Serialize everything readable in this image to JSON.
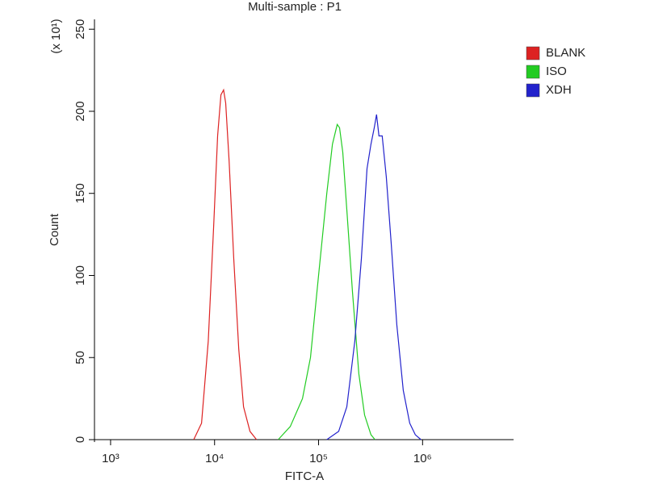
{
  "chart_data": {
    "type": "line",
    "title": "Multi-sample : P1",
    "x_label": "FITC-A",
    "y_label": "Count",
    "y_multiplier": "(x 10¹)",
    "xscale": "log",
    "xlim": [
      700,
      7500000
    ],
    "ylim": [
      0,
      256
    ],
    "xticks": [
      {
        "value": 1000,
        "label": "10³"
      },
      {
        "value": 10000,
        "label": "10⁴"
      },
      {
        "value": 100000,
        "label": "10⁵"
      },
      {
        "value": 1000000,
        "label": "10⁶"
      }
    ],
    "yticks": [
      0,
      50,
      100,
      150,
      200,
      250
    ],
    "legend": "right-top",
    "series": [
      {
        "name": "BLANK",
        "color": "#dd2222",
        "x": [
          6300,
          7500,
          8700,
          9800,
          10700,
          11500,
          12200,
          12800,
          13800,
          15300,
          17100,
          19000,
          21900,
          25300
        ],
        "values": [
          0,
          10,
          60,
          130,
          185,
          210,
          213,
          205,
          170,
          110,
          55,
          20,
          5,
          0
        ]
      },
      {
        "name": "ISO",
        "color": "#22cc22",
        "x": [
          40900,
          53500,
          70000,
          83600,
          100000,
          120000,
          136000,
          151000,
          159000,
          171000,
          187000,
          212000,
          244000,
          277000,
          319000,
          349000
        ],
        "values": [
          0,
          8,
          25,
          50,
          100,
          150,
          180,
          192,
          190,
          175,
          140,
          90,
          40,
          15,
          3,
          0
        ]
      },
      {
        "name": "XDH",
        "color": "#2222cc",
        "x": [
          120000,
          156000,
          187000,
          223000,
          258000,
          292000,
          319000,
          343000,
          361000,
          381000,
          409000,
          448000,
          499000,
          565000,
          652000,
          752000,
          851000,
          964000
        ],
        "values": [
          0,
          5,
          20,
          60,
          110,
          165,
          180,
          190,
          198,
          185,
          185,
          160,
          120,
          70,
          30,
          10,
          3,
          0
        ]
      }
    ]
  }
}
